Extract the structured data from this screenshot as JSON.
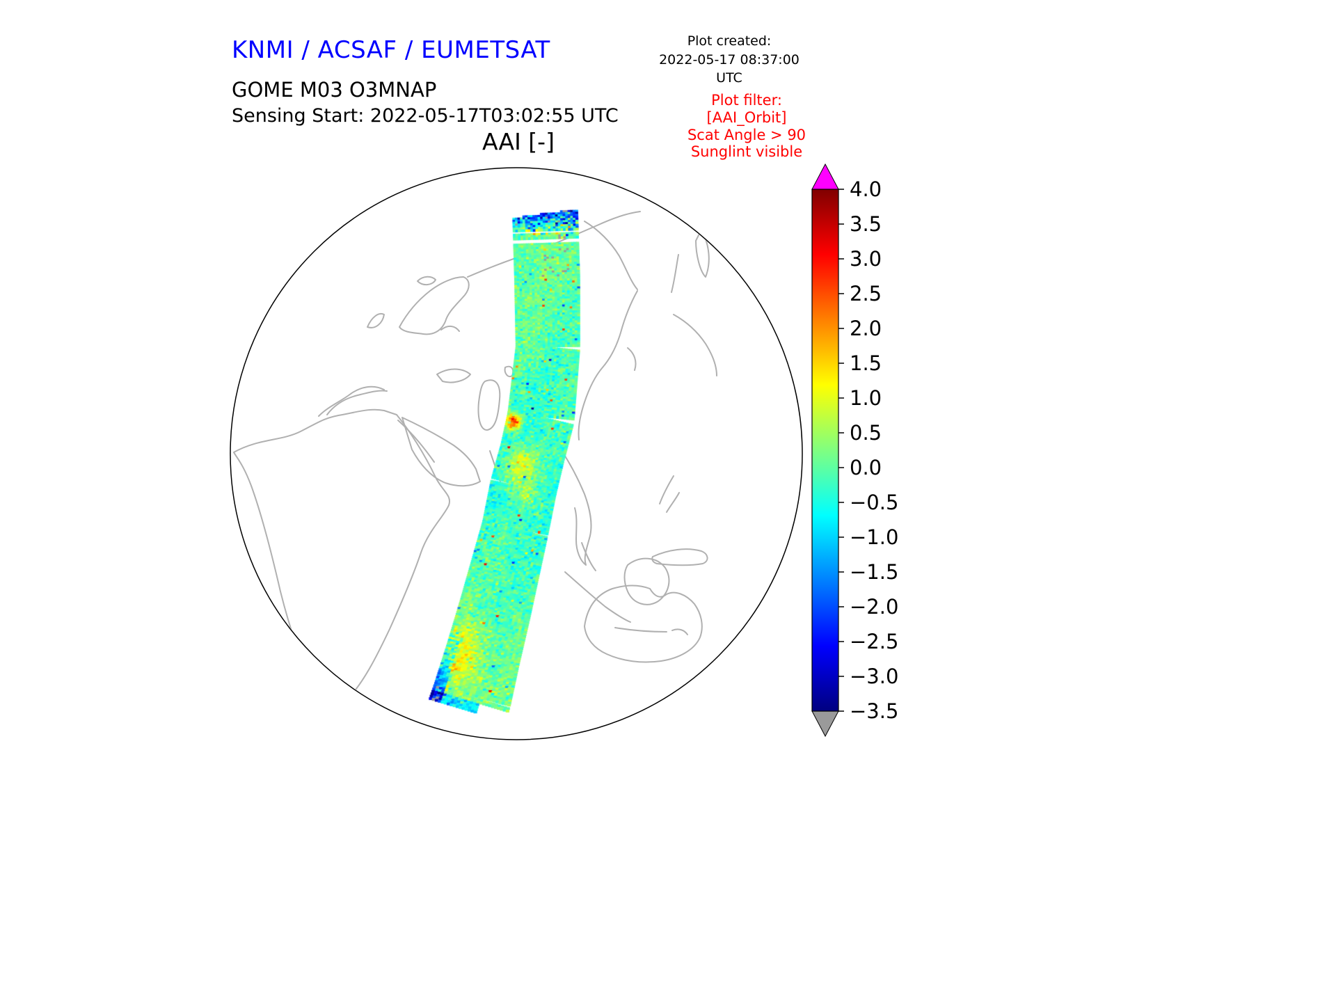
{
  "header": {
    "institution": "KNMI / ACSAF / EUMETSAT",
    "plot_created_label": "Plot created:",
    "plot_created_value": "2022-05-17 08:37:00 UTC",
    "product": "GOME M03 O3MNAP",
    "sensing_start": "Sensing Start: 2022-05-17T03:02:55 UTC",
    "filter": {
      "label": "Plot filter:",
      "lines": [
        "[AAI_Orbit]",
        "Scat Angle > 90",
        "Sunglint visible"
      ]
    }
  },
  "colors": {
    "background": "#ffffff",
    "institution_text": "#0000ff",
    "filter_text": "#ff0000",
    "coastline": "#b0b0b0",
    "globe_outline": "#000000",
    "colorbar_over": "#ff00ff",
    "colorbar_under": "#9a9a9a"
  },
  "chart_data": {
    "type": "heatmap",
    "title": "AAI [-]",
    "variable": "Absorbing Aerosol Index (AAI), unitless [-]",
    "projection": "orthographic globe showing Africa, Europe, Asia, Indian Ocean and Australia",
    "colorbar": {
      "orientation": "vertical",
      "position": "right",
      "min": -3.5,
      "max": 4.0,
      "tick_step": 0.5,
      "ticks": [
        4.0,
        3.5,
        3.0,
        2.5,
        2.0,
        1.5,
        1.0,
        0.5,
        0.0,
        -0.5,
        -1.0,
        -1.5,
        -2.0,
        -2.5,
        -3.0,
        -3.5
      ],
      "tick_labels": [
        "4.0",
        "3.5",
        "3.0",
        "2.5",
        "2.0",
        "1.5",
        "1.0",
        "0.5",
        "0.0",
        "−0.5",
        "−1.0",
        "−1.5",
        "−2.0",
        "−2.5",
        "−3.0",
        "−3.5"
      ],
      "colormap": "jet-like rainbow: dark blue (low) through cyan, green, yellow, orange to dark red (high)",
      "over_arrow_color": "#ff00ff",
      "under_arrow_color": "#9a9a9a"
    },
    "swath": {
      "description": "Single GOME-2 orbit swath running from the Arctic near the top of the globe south-southwest across Central Asia, India and the Indian Ocean to the lower left of the disc",
      "typical_range": "mostly −1.0 to +1.0 (green / cyan speckle)",
      "features": [
        "dense dark-blue / purple cluster at the northern (top) end of the swath",
        "two thin white no-data gap rows near the northern end",
        "scattered grey under-range pixels just south of the northern end",
        "compact orange-red anomaly (~2.5–3) on the west side of the swath near mid-latitudes",
        "broader yellow-orange patch (~1–1.5) just south of the red anomaly",
        "yellow patch (~1) near the south-western end of the swath",
        "cyan-blue streak along the extreme south-west edge of the swath"
      ]
    }
  }
}
